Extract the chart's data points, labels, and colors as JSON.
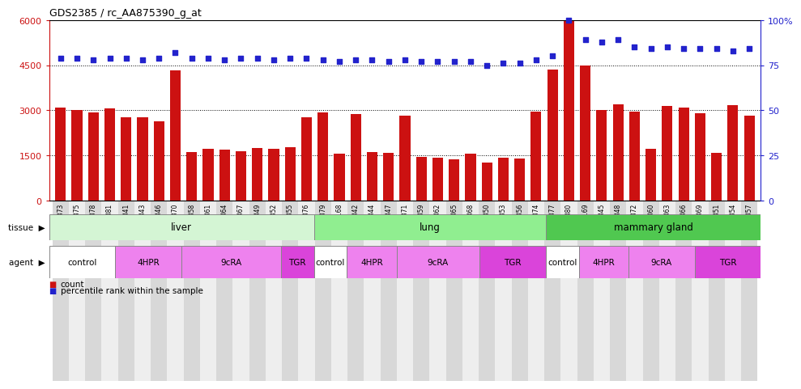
{
  "title": "GDS2385 / rc_AA875390_g_at",
  "samples": [
    "GSM89873",
    "GSM89875",
    "GSM89878",
    "GSM89881",
    "GSM89841",
    "GSM89843",
    "GSM89846",
    "GSM89870",
    "GSM89858",
    "GSM89861",
    "GSM89864",
    "GSM89867",
    "GSM89849",
    "GSM89852",
    "GSM89855",
    "GSM89876",
    "GSM89879",
    "GSM90168",
    "GSM89842",
    "GSM89844",
    "GSM89847",
    "GSM89871",
    "GSM89859",
    "GSM89862",
    "GSM89865",
    "GSM89868",
    "GSM89850",
    "GSM89853",
    "GSM89856",
    "GSM89874",
    "GSM89877",
    "GSM89880",
    "GSM90169",
    "GSM89845",
    "GSM89848",
    "GSM89872",
    "GSM89860",
    "GSM89863",
    "GSM89866",
    "GSM89869",
    "GSM89851",
    "GSM89854",
    "GSM89857"
  ],
  "counts": [
    3100,
    3020,
    2920,
    3060,
    2760,
    2760,
    2620,
    4330,
    1600,
    1710,
    1680,
    1650,
    1740,
    1710,
    1760,
    2760,
    2930,
    1560,
    2870,
    1610,
    1570,
    2820,
    1440,
    1410,
    1360,
    1560,
    1270,
    1420,
    1390,
    2960,
    4340,
    6000,
    4500,
    3010,
    3200,
    2960,
    1720,
    3140,
    3100,
    2910,
    1580,
    3170,
    2830
  ],
  "percentiles": [
    79,
    79,
    78,
    79,
    79,
    78,
    79,
    82,
    79,
    79,
    78,
    79,
    79,
    78,
    79,
    79,
    78,
    77,
    78,
    78,
    77,
    78,
    77,
    77,
    77,
    77,
    75,
    76,
    76,
    78,
    80,
    100,
    89,
    88,
    89,
    85,
    84,
    85,
    84,
    84,
    84,
    83,
    84
  ],
  "bar_color": "#cc1111",
  "dot_color": "#2222cc",
  "ylim_left": [
    0,
    6000
  ],
  "ylim_right": [
    0,
    100
  ],
  "yticks_left": [
    0,
    1500,
    3000,
    4500,
    6000
  ],
  "yticks_right": [
    0,
    25,
    50,
    75,
    100
  ],
  "tissue_groups": [
    {
      "label": "liver",
      "start": 0,
      "end": 16,
      "color": "#d4f5d4"
    },
    {
      "label": "lung",
      "start": 16,
      "end": 30,
      "color": "#90ee90"
    },
    {
      "label": "mammary gland",
      "start": 30,
      "end": 43,
      "color": "#50c850"
    }
  ],
  "agent_groups": [
    {
      "label": "control",
      "start": 0,
      "end": 4,
      "color": "#ffffff"
    },
    {
      "label": "4HPR",
      "start": 4,
      "end": 8,
      "color": "#ee82ee"
    },
    {
      "label": "9cRA",
      "start": 8,
      "end": 14,
      "color": "#ee82ee"
    },
    {
      "label": "TGR",
      "start": 14,
      "end": 16,
      "color": "#da44da"
    },
    {
      "label": "control",
      "start": 16,
      "end": 18,
      "color": "#ffffff"
    },
    {
      "label": "4HPR",
      "start": 18,
      "end": 21,
      "color": "#ee82ee"
    },
    {
      "label": "9cRA",
      "start": 21,
      "end": 26,
      "color": "#ee82ee"
    },
    {
      "label": "TGR",
      "start": 26,
      "end": 30,
      "color": "#da44da"
    },
    {
      "label": "control",
      "start": 30,
      "end": 32,
      "color": "#ffffff"
    },
    {
      "label": "4HPR",
      "start": 32,
      "end": 35,
      "color": "#ee82ee"
    },
    {
      "label": "9cRA",
      "start": 35,
      "end": 39,
      "color": "#ee82ee"
    },
    {
      "label": "TGR",
      "start": 39,
      "end": 43,
      "color": "#da44da"
    }
  ]
}
